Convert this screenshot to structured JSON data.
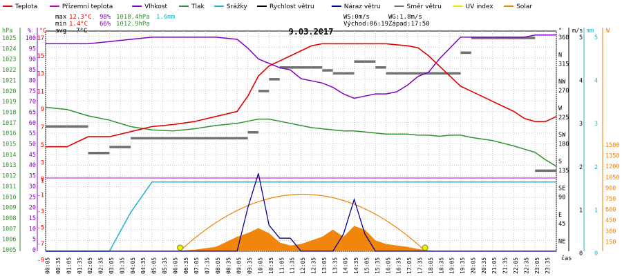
{
  "chart_data": {
    "type": "line",
    "title": "9.03.2017",
    "legend": [
      {
        "name": "Teplota",
        "color": "#e00000"
      },
      {
        "name": "Přízemní teplota",
        "color": "#c000c0"
      },
      {
        "name": "Vlhkost",
        "color": "#8000c0"
      },
      {
        "name": "Tlak",
        "color": "#309030"
      },
      {
        "name": "Srážky",
        "color": "#20b0d0"
      },
      {
        "name": "Rychlost větru",
        "color": "#000000"
      },
      {
        "name": "Náraz větru",
        "color": "#000090"
      },
      {
        "name": "Směr větru",
        "color": "#707070"
      },
      {
        "name": "UV index",
        "color": "#f0e000"
      },
      {
        "name": "Solar",
        "color": "#f08000"
      }
    ],
    "stats": {
      "max_label": "max",
      "min_label": "min",
      "avg_label": "avg",
      "max_temp": "12.3°C",
      "max_hum": "98%",
      "max_press": "1018.4hPa",
      "max_rain": "1.6mm",
      "min_temp": "1.4°C",
      "min_hum": "66%",
      "min_press": "1012.9hPa",
      "avg_temp": "7°C",
      "ws": "WS:0m/s",
      "wg": "WG:1.8m/s",
      "sunrise": "Východ:06:19",
      "sunset": "Západ:17:50"
    },
    "axes": {
      "hpa_unit": "hPa",
      "pct_unit": "%",
      "c_unit": "°C",
      "deg_unit": "°",
      "ms_unit": "m/s",
      "mm_unit": "mm",
      "w_unit": "W",
      "time_unit": "čas",
      "hpa_ticks": [
        "1025",
        "1024",
        "1023",
        "1022",
        "1021",
        "1020",
        "1019",
        "1018",
        "1017",
        "1016",
        "1015",
        "1014",
        "1013",
        "1012",
        "1011",
        "1010",
        "1009",
        "1008",
        "1007",
        "1006",
        "1005"
      ],
      "pct_ticks": [
        "100",
        "95",
        "90",
        "85",
        "80",
        "75",
        "70",
        "65",
        "60",
        "55",
        "50",
        "45",
        "40",
        "35",
        "30",
        "25",
        "20",
        "15",
        "10",
        "5",
        "0"
      ],
      "c_ticks_upper": [
        "17",
        "15",
        "13",
        "11",
        "9",
        "7",
        "5",
        "3",
        "1"
      ],
      "c_ticks_lower": [
        "0",
        "-1",
        "-3",
        "-5",
        "-7",
        "-9"
      ],
      "dir_ticks": [
        "360",
        "N",
        "315",
        "NW",
        "270",
        "W",
        "225",
        "SW",
        "180",
        "S",
        "135",
        "SE",
        "90",
        "E",
        "45",
        "NE"
      ],
      "ms_ticks": [
        "5",
        "4",
        "3",
        "2",
        "1",
        "0"
      ],
      "mm_ticks": [
        "5",
        "4",
        "3",
        "2",
        "1",
        "0"
      ],
      "w_ticks": [
        "1500",
        "1350",
        "1200",
        "1050",
        "900",
        "750",
        "600",
        "450",
        "300",
        "150"
      ],
      "x_ticks": [
        "00:05",
        "00:35",
        "01:05",
        "01:35",
        "02:05",
        "02:35",
        "03:05",
        "03:35",
        "04:05",
        "04:35",
        "05:05",
        "05:35",
        "06:05",
        "06:35",
        "07:05",
        "07:35",
        "08:05",
        "08:35",
        "09:05",
        "09:35",
        "10:05",
        "10:35",
        "11:05",
        "11:35",
        "12:05",
        "12:35",
        "13:05",
        "13:35",
        "14:05",
        "14:35",
        "15:05",
        "15:35",
        "16:05",
        "16:35",
        "17:05",
        "17:35",
        "18:05",
        "18:35",
        "19:05",
        "19:35",
        "20:05",
        "20:35",
        "21:05",
        "21:35",
        "22:05",
        "22:35",
        "23:05",
        "23:35"
      ]
    },
    "hours": [
      0,
      1,
      2,
      3,
      4,
      5,
      6,
      7,
      8,
      9,
      9.5,
      10,
      10.5,
      11,
      11.5,
      12,
      12.5,
      13,
      13.5,
      14,
      14.5,
      15,
      15.5,
      16,
      16.5,
      17,
      17.5,
      18,
      18.5,
      19,
      19.5,
      20,
      21,
      22,
      22.5,
      23,
      23.5,
      24
    ],
    "temperature": [
      2.0,
      2.0,
      3.0,
      3.0,
      3.5,
      4.0,
      4.2,
      4.5,
      5.0,
      5.5,
      7.0,
      9.0,
      10.0,
      10.5,
      11.0,
      11.5,
      12.0,
      12.2,
      12.2,
      12.2,
      12.2,
      12.2,
      12.2,
      12.2,
      12.1,
      12.0,
      11.8,
      11.0,
      10.0,
      9.0,
      8.0,
      7.5,
      6.5,
      5.5,
      4.8,
      4.5,
      4.5,
      5.0
    ],
    "humidity": [
      95,
      95,
      95,
      96,
      97,
      98,
      98,
      98,
      98,
      97,
      93,
      88,
      86,
      84,
      83,
      79,
      78,
      77,
      75,
      72,
      70,
      71,
      72,
      72,
      73,
      76,
      80,
      82,
      88,
      93,
      98,
      98,
      98,
      98,
      98,
      99,
      99,
      99
    ],
    "pressure": [
      1018.4,
      1018.2,
      1017.6,
      1017.2,
      1016.6,
      1016.3,
      1016.2,
      1016.4,
      1016.7,
      1016.9,
      1017.1,
      1017.3,
      1017.3,
      1017.1,
      1016.9,
      1016.7,
      1016.5,
      1016.4,
      1016.3,
      1016.2,
      1016.2,
      1016.1,
      1016.0,
      1015.9,
      1015.9,
      1015.9,
      1015.8,
      1015.8,
      1015.7,
      1015.8,
      1015.8,
      1015.6,
      1015.3,
      1014.8,
      1014.5,
      1014.2,
      1013.5,
      1012.9
    ],
    "rain_mm": [
      0,
      0,
      0,
      0,
      0.9,
      1.6,
      1.6,
      1.6,
      1.6,
      1.6,
      1.6,
      1.6,
      1.6,
      1.6,
      1.6,
      1.6,
      1.6,
      1.6,
      1.6,
      1.6,
      1.6,
      1.6,
      1.6,
      1.6,
      1.6,
      1.6,
      1.6,
      1.6,
      1.6,
      1.6,
      1.6,
      1.6,
      1.6,
      1.6,
      1.6,
      1.6,
      1.6,
      1.6
    ],
    "wind_direction_deg": [
      210,
      210,
      165,
      175,
      190,
      190,
      190,
      190,
      190,
      190,
      200,
      270,
      290,
      310,
      310,
      310,
      310,
      305,
      300,
      300,
      320,
      320,
      310,
      300,
      300,
      300,
      300,
      300,
      300,
      300,
      335,
      360,
      360,
      360,
      360,
      135,
      135,
      135
    ],
    "gust_ms": [
      0,
      0,
      0,
      0,
      0,
      0,
      0,
      0,
      0,
      0,
      1.0,
      1.8,
      0.6,
      0.3,
      0.3,
      0,
      0,
      0,
      0,
      0.4,
      1.2,
      0.4,
      0,
      0,
      0,
      0,
      0,
      0,
      0,
      0,
      0,
      0,
      0,
      0,
      0,
      0,
      0,
      0
    ],
    "solar_wm2": [
      0,
      0,
      0,
      0,
      0,
      0,
      0,
      20,
      60,
      200,
      250,
      320,
      250,
      120,
      80,
      100,
      150,
      200,
      300,
      200,
      350,
      300,
      150,
      100,
      80,
      60,
      30,
      10,
      0,
      0,
      0,
      0,
      0,
      0,
      0,
      0,
      0,
      0
    ],
    "solar_theoretical_wm2": [
      0,
      0,
      0,
      0,
      0,
      0,
      0,
      220,
      470,
      700,
      790,
      860,
      900,
      920,
      940,
      950,
      940,
      920,
      900,
      860,
      800,
      720,
      620,
      500,
      340,
      160,
      0,
      0,
      0,
      0,
      0,
      0,
      0,
      0,
      0,
      0,
      0,
      0
    ]
  }
}
